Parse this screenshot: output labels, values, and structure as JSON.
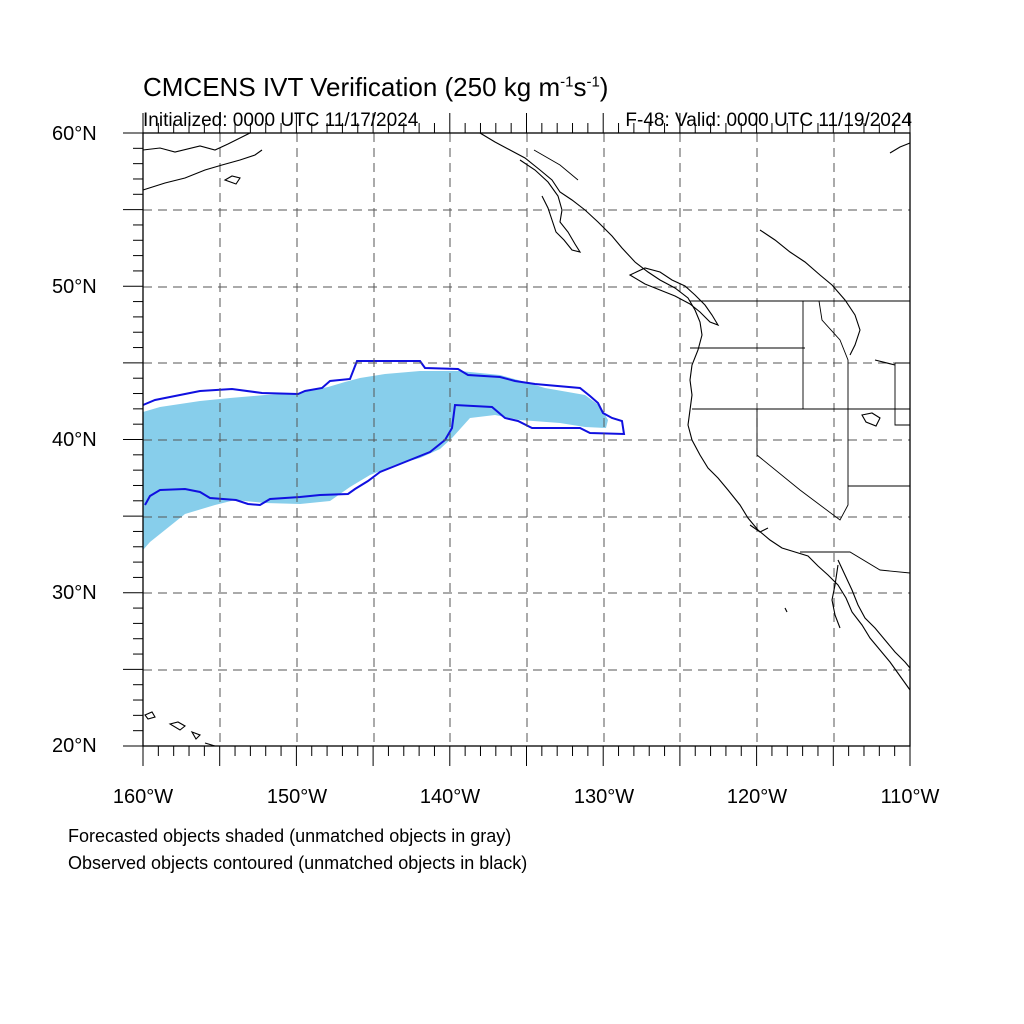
{
  "title": {
    "prefix": "CMCENS IVT Verification (250 kg m",
    "exp1": "-1",
    "mid": "s",
    "exp2": "-1",
    "suffix": ")"
  },
  "initialized": "Initialized: 0000 UTC 11/17/2024",
  "valid": "F-48: Valid: 0000 UTC 11/19/2024",
  "lat_labels": [
    "60°N",
    "50°N",
    "40°N",
    "30°N",
    "20°N"
  ],
  "lon_labels": [
    "160°W",
    "150°W",
    "140°W",
    "130°W",
    "120°W",
    "110°W"
  ],
  "footnote_forecast": "Forecasted objects shaded (unmatched objects in gray)",
  "footnote_observed": "Observed objects contoured (unmatched objects in black)",
  "colors": {
    "forecast_fill": "#87ceeb",
    "observed_contour": "#1010e0",
    "coastline": "#000000",
    "grid": "#555555"
  }
}
